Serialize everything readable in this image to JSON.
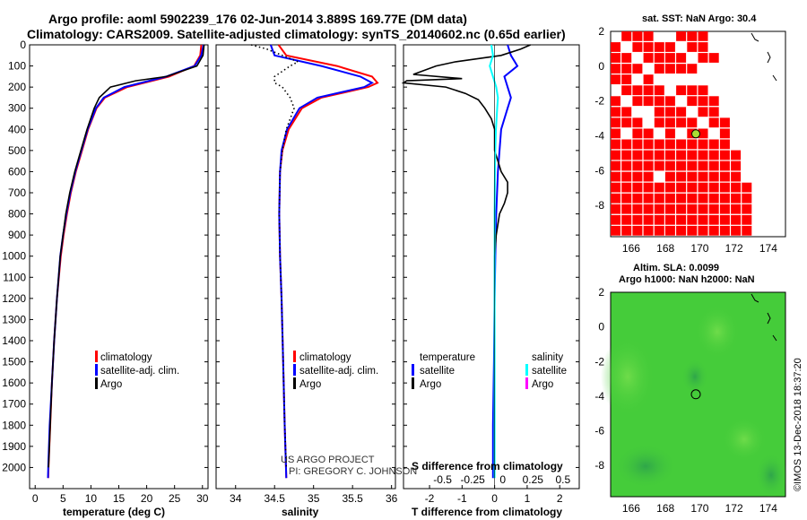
{
  "header": {
    "title_line1": "Argo profile: aoml 5902239_176 02-Jun-2014 3.889S 169.77E (DM data)",
    "title_line2": "Climatology: CARS2009. Satellite-adjusted climatology: synTS_20140602.nc (0.65d earlier)"
  },
  "colors": {
    "climatology": "#ff0000",
    "satellite": "#0000ff",
    "argo": "#000000",
    "sat_salinity": "#00ffff",
    "argo_salinity": "#ff00ff",
    "sst_fill": "#ff0000",
    "sla_fill": "#33cc33"
  },
  "chart_data": [
    {
      "type": "line",
      "name": "temperature",
      "xlabel": "temperature (deg C)",
      "xlim": [
        -1,
        31
      ],
      "ylim": [
        2100,
        0
      ],
      "xticks": [
        0,
        5,
        10,
        15,
        20,
        25,
        30
      ],
      "yticks": [
        0,
        100,
        200,
        300,
        400,
        500,
        600,
        700,
        800,
        900,
        1000,
        1100,
        1200,
        1300,
        1400,
        1500,
        1600,
        1700,
        1800,
        1900,
        2000
      ],
      "legend": [
        "climatology",
        "satellite-adj. clim.",
        "Argo"
      ],
      "series": [
        {
          "name": "climatology",
          "depth": [
            0,
            50,
            100,
            150,
            200,
            250,
            300,
            400,
            500,
            600,
            700,
            800,
            900,
            1000,
            1200,
            1400,
            1600,
            1800,
            2000,
            2050
          ],
          "values": [
            29.8,
            29.6,
            28.5,
            24,
            16.5,
            12.5,
            11,
            9.5,
            8.4,
            7.3,
            6.4,
            5.7,
            5.1,
            4.6,
            3.9,
            3.4,
            3.0,
            2.7,
            2.4,
            2.35
          ]
        },
        {
          "name": "satellite-adj. clim.",
          "depth": [
            0,
            50,
            100,
            150,
            200,
            250,
            300,
            400,
            500,
            600,
            700,
            800,
            900,
            1000,
            1200,
            1400,
            1600,
            1800,
            2000,
            2050
          ],
          "values": [
            30.2,
            29.8,
            28.6,
            23.5,
            16,
            12.3,
            10.9,
            9.4,
            8.3,
            7.2,
            6.3,
            5.6,
            5.0,
            4.5,
            3.9,
            3.4,
            3.0,
            2.6,
            2.35,
            2.3
          ]
        },
        {
          "name": "Argo",
          "depth": [
            0,
            50,
            100,
            150,
            170,
            200,
            250,
            300,
            400,
            500,
            600,
            700,
            800,
            900,
            1000,
            1200,
            1400,
            1600,
            1800,
            2000
          ],
          "values": [
            30.3,
            30.1,
            29,
            23.5,
            18,
            13.5,
            11.5,
            10.6,
            9.3,
            8.2,
            7.1,
            6.2,
            5.5,
            5.0,
            4.5,
            3.9,
            3.4,
            3.0,
            2.7,
            2.4
          ]
        }
      ]
    },
    {
      "type": "line",
      "name": "salinity",
      "xlabel": "salinity",
      "xlim": [
        33.75,
        36.05
      ],
      "ylim": [
        2100,
        0
      ],
      "xticks": [
        34,
        34.5,
        35,
        35.5,
        36
      ],
      "legend": [
        "climatology",
        "satellite-adj. clim.",
        "Argo"
      ],
      "series": [
        {
          "name": "climatology",
          "depth": [
            0,
            50,
            100,
            150,
            180,
            200,
            250,
            300,
            400,
            500,
            600,
            800,
            1000,
            1200,
            1500,
            1800,
            2050
          ],
          "values": [
            34.55,
            34.65,
            35.3,
            35.75,
            35.82,
            35.7,
            35.1,
            34.85,
            34.68,
            34.6,
            34.57,
            34.56,
            34.57,
            34.59,
            34.61,
            34.63,
            34.65
          ]
        },
        {
          "name": "satellite-adj. clim.",
          "depth": [
            0,
            50,
            100,
            150,
            180,
            200,
            250,
            300,
            400,
            500,
            600,
            800,
            1000,
            1200,
            1500,
            1800,
            2050
          ],
          "values": [
            34.45,
            34.5,
            35.1,
            35.6,
            35.75,
            35.65,
            35.05,
            34.82,
            34.66,
            34.59,
            34.57,
            34.56,
            34.57,
            34.59,
            34.61,
            34.63,
            34.65
          ]
        },
        {
          "name": "Argo",
          "depth": [
            0,
            20,
            50,
            80,
            100,
            150,
            180,
            200,
            250,
            300,
            400,
            500,
            600,
            800,
            1000,
            1200,
            1500,
            1800,
            2000
          ],
          "values": [
            34.2,
            34.4,
            34.6,
            34.8,
            34.7,
            34.5,
            34.5,
            34.6,
            34.7,
            34.75,
            34.65,
            34.6,
            34.57,
            34.56,
            34.57,
            34.59,
            34.61,
            34.63,
            34.65
          ]
        }
      ],
      "annotations": [
        "US ARGO PROJECT",
        "PI: GREGORY C. JOHNSON"
      ]
    },
    {
      "type": "line",
      "name": "difference",
      "xlabel": "T difference from climatology",
      "xlabel_top": "S difference from climatology",
      "xlim": [
        -2.8,
        2.6
      ],
      "ylim": [
        2100,
        0
      ],
      "xticks": [
        -2,
        -1,
        0,
        1,
        2
      ],
      "xticks_top": [
        -0.5,
        -0.25,
        0,
        0.25,
        0.5
      ],
      "legend_left": [
        "temperature",
        "satellite",
        "Argo"
      ],
      "legend_right": [
        "salinity",
        "satellite",
        "Argo"
      ],
      "series": [
        {
          "name": "temperature satellite",
          "depth": [
            0,
            50,
            100,
            150,
            200,
            250,
            300,
            400,
            500,
            600,
            800,
            1000,
            1200,
            1500,
            1800,
            2050
          ],
          "values": [
            0.4,
            0.5,
            0.7,
            0.3,
            0.4,
            0.5,
            0.4,
            0.2,
            0.15,
            0.1,
            0.05,
            0.02,
            0.0,
            -0.02,
            -0.05,
            -0.05
          ]
        },
        {
          "name": "temperature Argo",
          "depth": [
            0,
            20,
            50,
            80,
            100,
            140,
            160,
            170,
            180,
            200,
            230,
            260,
            300,
            350,
            400,
            500,
            550,
            600,
            650,
            700,
            750,
            800,
            900,
            1000,
            1200,
            1500,
            1800,
            2000
          ],
          "values": [
            1.1,
            0.8,
            0.2,
            -1.2,
            -1.8,
            -2.5,
            -1.0,
            -2.7,
            -2.8,
            -1.5,
            -0.9,
            -0.5,
            -0.3,
            -0.1,
            0.0,
            0.0,
            0.1,
            0.2,
            0.4,
            0.4,
            0.3,
            0.15,
            0.05,
            0.0,
            0.0,
            0.0,
            0.0,
            0.0
          ]
        },
        {
          "name": "salinity satellite",
          "depth": [
            0,
            50,
            100,
            150,
            200,
            250,
            300,
            400,
            500,
            600,
            800,
            1000,
            1200,
            1500,
            1800,
            2050
          ],
          "values": [
            -0.1,
            -0.05,
            -0.15,
            -0.05,
            0.05,
            0.1,
            0.08,
            0.04,
            0.02,
            0.01,
            0.0,
            0.0,
            0.0,
            0.0,
            0.0,
            0.0
          ]
        }
      ]
    }
  ],
  "maps": {
    "sst": {
      "title": "sat. SST: NaN Argo: 30.4",
      "xticks": [
        166,
        168,
        170,
        172,
        174
      ],
      "yticks": [
        2,
        0,
        -2,
        -4,
        -6,
        -8
      ],
      "argo_lon": 169.77,
      "argo_lat": -3.889
    },
    "sla": {
      "title_line1": "Altim. SLA: 0.0099",
      "title_line2": "Argo h1000: NaN h2000: NaN",
      "xticks": [
        166,
        168,
        170,
        172,
        174
      ],
      "yticks": [
        2,
        0,
        -2,
        -4,
        -6,
        -8
      ],
      "argo_lon": 169.77,
      "argo_lat": -3.889
    }
  },
  "stamp": "©IMOS 13-Dec-2018 18:37:20"
}
